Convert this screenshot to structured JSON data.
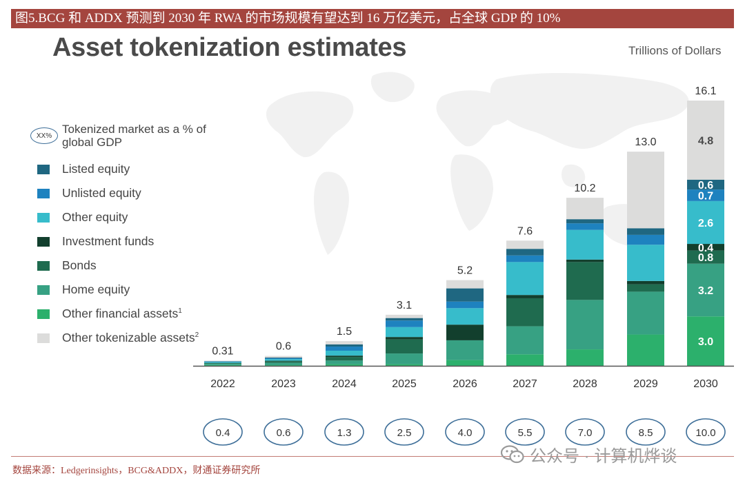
{
  "banner": "图5.BCG 和 ADDX 预测到 2030 年 RWA 的市场规模有望达到 16 万亿美元，占全球 GDP 的 10%",
  "source": "数据来源：Ledgerinsights，BCG&ADDX，财通证券研究所",
  "watermark": "公众号 · 计算机烨谈",
  "gdp_legend": {
    "symbol": "XX%",
    "label": "Tokenized market as a % of global GDP"
  },
  "chart_data": {
    "type": "bar",
    "stacked": true,
    "title": "Asset tokenization estimates",
    "units": "Trillions of Dollars",
    "categories": [
      "2022",
      "2023",
      "2024",
      "2025",
      "2026",
      "2027",
      "2028",
      "2029",
      "2030"
    ],
    "totals": [
      "0.31",
      "0.6",
      "1.5",
      "3.1",
      "5.2",
      "7.6",
      "10.2",
      "13.0",
      "16.1"
    ],
    "gdp_share": [
      "0.4",
      "0.6",
      "1.3",
      "2.5",
      "4.0",
      "5.5",
      "7.0",
      "8.5",
      "10.0"
    ],
    "ylim": [
      0,
      16.1
    ],
    "series": [
      {
        "name": "Other financial assets",
        "sup": "1",
        "color": "#2cb06c",
        "values": [
          0.05,
          0.04,
          0.1,
          0.1,
          0.35,
          0.7,
          1.0,
          1.9,
          3.0
        ]
      },
      {
        "name": "Home equity",
        "sup": "",
        "color": "#37a183",
        "values": [
          0.08,
          0.14,
          0.22,
          0.65,
          1.2,
          1.7,
          3.0,
          2.6,
          3.2
        ]
      },
      {
        "name": "Bonds",
        "sup": "",
        "color": "#1f6b4f",
        "values": [
          0.04,
          0.1,
          0.22,
          0.85,
          0.0,
          1.7,
          2.3,
          0.45,
          0.8
        ]
      },
      {
        "name": "Investment funds",
        "sup": "",
        "color": "#123f2d",
        "values": [
          0.01,
          0.03,
          0.08,
          0.15,
          0.95,
          0.2,
          0.15,
          0.2,
          0.4
        ]
      },
      {
        "name": "Other equity",
        "sup": "",
        "color": "#37bccb",
        "values": [
          0.05,
          0.1,
          0.3,
          0.6,
          1.0,
          2.0,
          1.8,
          2.2,
          2.6
        ]
      },
      {
        "name": "Unlisted equity",
        "sup": "",
        "color": "#1e82bf",
        "values": [
          0.03,
          0.05,
          0.25,
          0.4,
          0.4,
          0.4,
          0.4,
          0.6,
          0.7
        ]
      },
      {
        "name": "Listed equity",
        "sup": "",
        "color": "#1f6781",
        "values": [
          0.02,
          0.04,
          0.13,
          0.15,
          0.8,
          0.4,
          0.25,
          0.4,
          0.6
        ]
      },
      {
        "name": "Other tokenizable assets",
        "sup": "2",
        "color": "#dcdcdb",
        "values": [
          0.03,
          0.1,
          0.2,
          0.2,
          0.5,
          0.5,
          1.3,
          4.65,
          4.8
        ]
      }
    ],
    "value_labels": [
      {
        "year": "2030",
        "series": "Other financial assets",
        "text": "3.0"
      },
      {
        "year": "2030",
        "series": "Home equity",
        "text": "3.2"
      },
      {
        "year": "2030",
        "series": "Bonds",
        "text": "0.8"
      },
      {
        "year": "2030",
        "series": "Investment funds",
        "text": "0.4"
      },
      {
        "year": "2030",
        "series": "Other equity",
        "text": "2.6"
      },
      {
        "year": "2030",
        "series": "Unlisted equity",
        "text": "0.7"
      },
      {
        "year": "2030",
        "series": "Listed equity",
        "text": "0.6"
      },
      {
        "year": "2030",
        "series": "Other tokenizable assets",
        "text": "4.8"
      }
    ],
    "legend_order": [
      "Listed equity",
      "Unlisted equity",
      "Other equity",
      "Investment funds",
      "Bonds",
      "Home equity",
      "Other financial assets",
      "Other tokenizable assets"
    ]
  }
}
